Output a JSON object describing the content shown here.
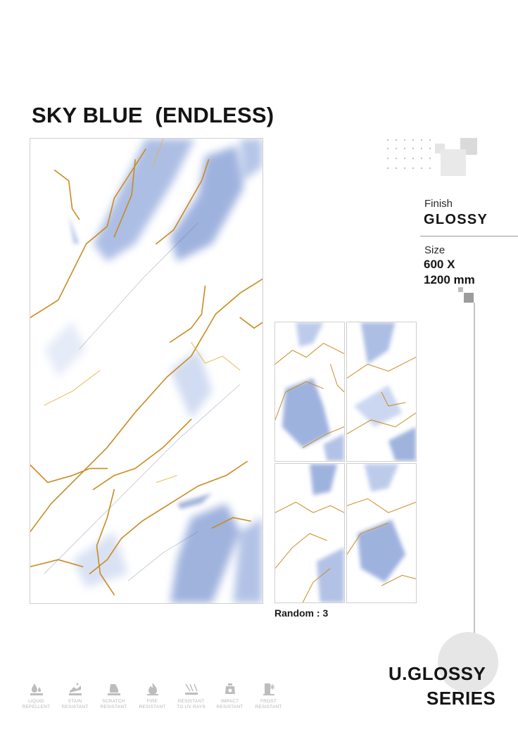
{
  "product": {
    "title": "SKY BLUE  (ENDLESS)",
    "random_label": "Random : 3"
  },
  "specs": {
    "finish_label": "Finish",
    "finish_value": "GLOSSY",
    "size_label": "Size",
    "size_value": "600 X\n1200 mm"
  },
  "series": {
    "line1": "U.GLOSSY",
    "line2": "SERIES"
  },
  "features": [
    {
      "icon": "liquid-repellent-icon",
      "label": "LIQUID\nREPELLENT"
    },
    {
      "icon": "stain-resistant-icon",
      "label": "STAIN\nRESISTANT"
    },
    {
      "icon": "scratch-resistant-icon",
      "label": "SCRATCH\nRESISTANT"
    },
    {
      "icon": "fire-resistant-icon",
      "label": "FIRE\nRESISTANT"
    },
    {
      "icon": "uv-resistant-icon",
      "label": "RESISTANT\nTO UV RAYS"
    },
    {
      "icon": "impact-resistant-icon",
      "label": "IMPACT\nRESISTANT"
    },
    {
      "icon": "frost-resistant-icon",
      "label": "FROST\nRESISTANT"
    }
  ],
  "colors": {
    "marble_blue": "#8fa6d8",
    "vein_gold": "#c98a1e",
    "accent_gray": "#9c9c9c"
  }
}
